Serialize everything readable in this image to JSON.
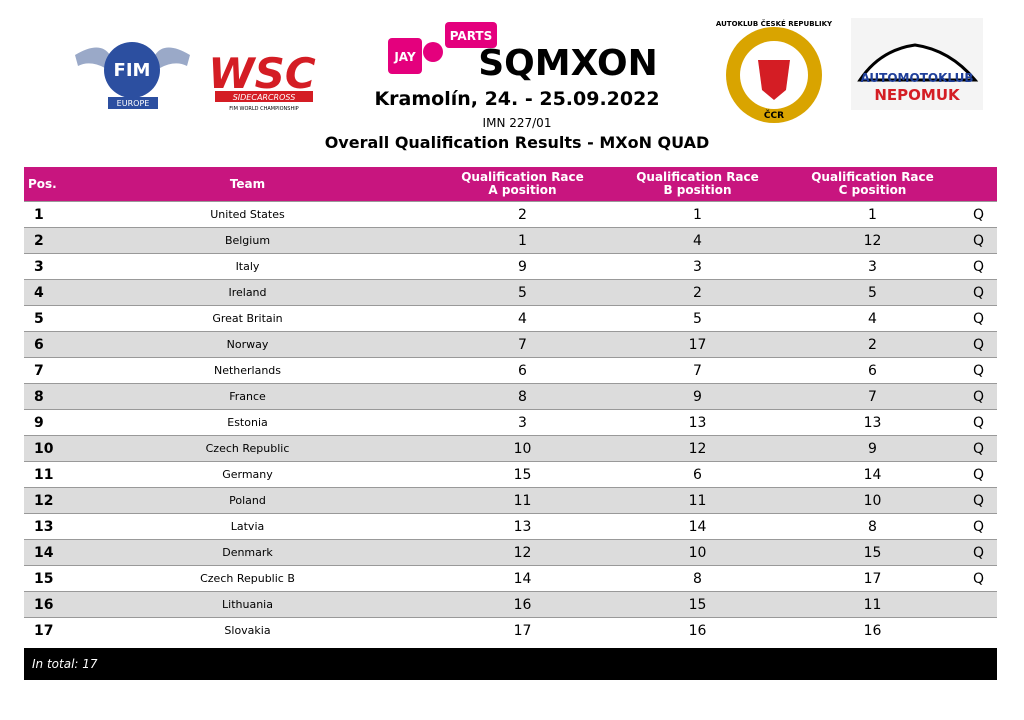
{
  "header": {
    "logos": {
      "fim": "FIM",
      "fim_sub": "EUROPE",
      "wsc": "WSC",
      "wsc_sub": "SIDECARCROSS",
      "wsc_sub2": "FIM WORLD CHAMPIONSHIP",
      "jay": "JAY",
      "parts": "PARTS",
      "sqmxon": "SQMXON",
      "acr": "AUTOKLUB ČESKÉ REPUBLIKY",
      "acr_sub": "ČCR",
      "amk": "AUTOMOTOKLUB",
      "amk_sub": "NEPOMUK"
    },
    "place_date": "Kramolín, 24. - 25.09.2022",
    "code": "IMN 227/01",
    "title": "Overall Qualification Results -  MXoN QUAD"
  },
  "table": {
    "columns": [
      "Pos.",
      "Team",
      "Qualification Race A position",
      "Qualification Race B position",
      "Qualification Race C position"
    ],
    "rows": [
      [
        1,
        "United States",
        2,
        1,
        1,
        "Q"
      ],
      [
        2,
        "Belgium",
        1,
        4,
        12,
        "Q"
      ],
      [
        3,
        "Italy",
        9,
        3,
        3,
        "Q"
      ],
      [
        4,
        "Ireland",
        5,
        2,
        5,
        "Q"
      ],
      [
        5,
        "Great Britain",
        4,
        5,
        4,
        "Q"
      ],
      [
        6,
        "Norway",
        7,
        17,
        2,
        "Q"
      ],
      [
        7,
        "Netherlands",
        6,
        7,
        6,
        "Q"
      ],
      [
        8,
        "France",
        8,
        9,
        7,
        "Q"
      ],
      [
        9,
        "Estonia",
        3,
        13,
        13,
        "Q"
      ],
      [
        10,
        "Czech Republic",
        10,
        12,
        9,
        "Q"
      ],
      [
        11,
        "Germany",
        15,
        6,
        14,
        "Q"
      ],
      [
        12,
        "Poland",
        11,
        11,
        10,
        "Q"
      ],
      [
        13,
        "Latvia",
        13,
        14,
        8,
        "Q"
      ],
      [
        14,
        "Denmark",
        12,
        10,
        15,
        "Q"
      ],
      [
        15,
        "Czech Republic B",
        14,
        8,
        17,
        "Q"
      ],
      [
        16,
        "Lithuania",
        16,
        15,
        11
      ],
      [
        17,
        "Slovakia",
        17,
        16,
        16
      ]
    ],
    "footer": "In total: 17"
  }
}
